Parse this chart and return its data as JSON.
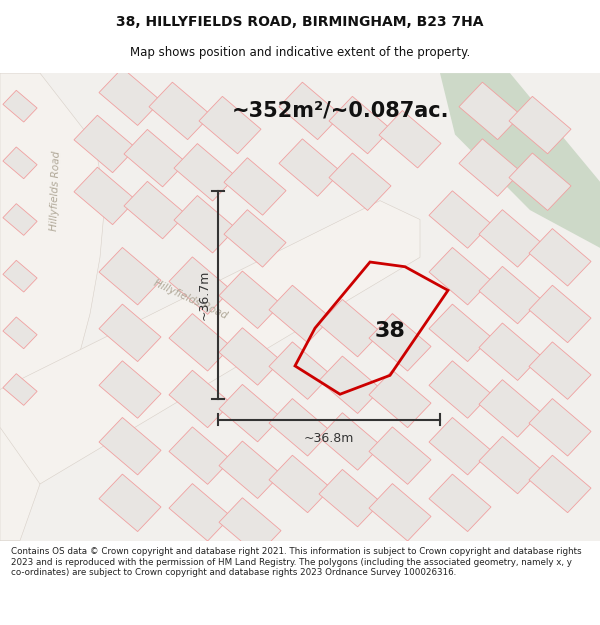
{
  "title": "38, HILLYFIELDS ROAD, BIRMINGHAM, B23 7HA",
  "subtitle": "Map shows position and indicative extent of the property.",
  "area_text": "~352m²/~0.087ac.",
  "dim_vertical": "~36.7m",
  "dim_horizontal": "~36.8m",
  "property_number": "38",
  "road_label_left": "Hillyfields Road",
  "road_label_diag": "Hillyfields Road",
  "footer": "Contains OS data © Crown copyright and database right 2021. This information is subject to Crown copyright and database rights 2023 and is reproduced with the permission of HM Land Registry. The polygons (including the associated geometry, namely x, y co-ordinates) are subject to Crown copyright and database rights 2023 Ordnance Survey 100026316.",
  "bg_color": "#f2f0ed",
  "plot_fill": "#e8e5e2",
  "plot_edge": "#f0a0a0",
  "green_fill": "#cdd9c8",
  "road_fill": "#ffffff",
  "property_color": "#cc0000",
  "dim_color": "#333333",
  "fig_width": 6.0,
  "fig_height": 6.25,
  "title_fontsize": 10,
  "subtitle_fontsize": 8.5,
  "area_fontsize": 15,
  "dim_fontsize": 9,
  "number_fontsize": 16,
  "footer_fontsize": 6.3
}
